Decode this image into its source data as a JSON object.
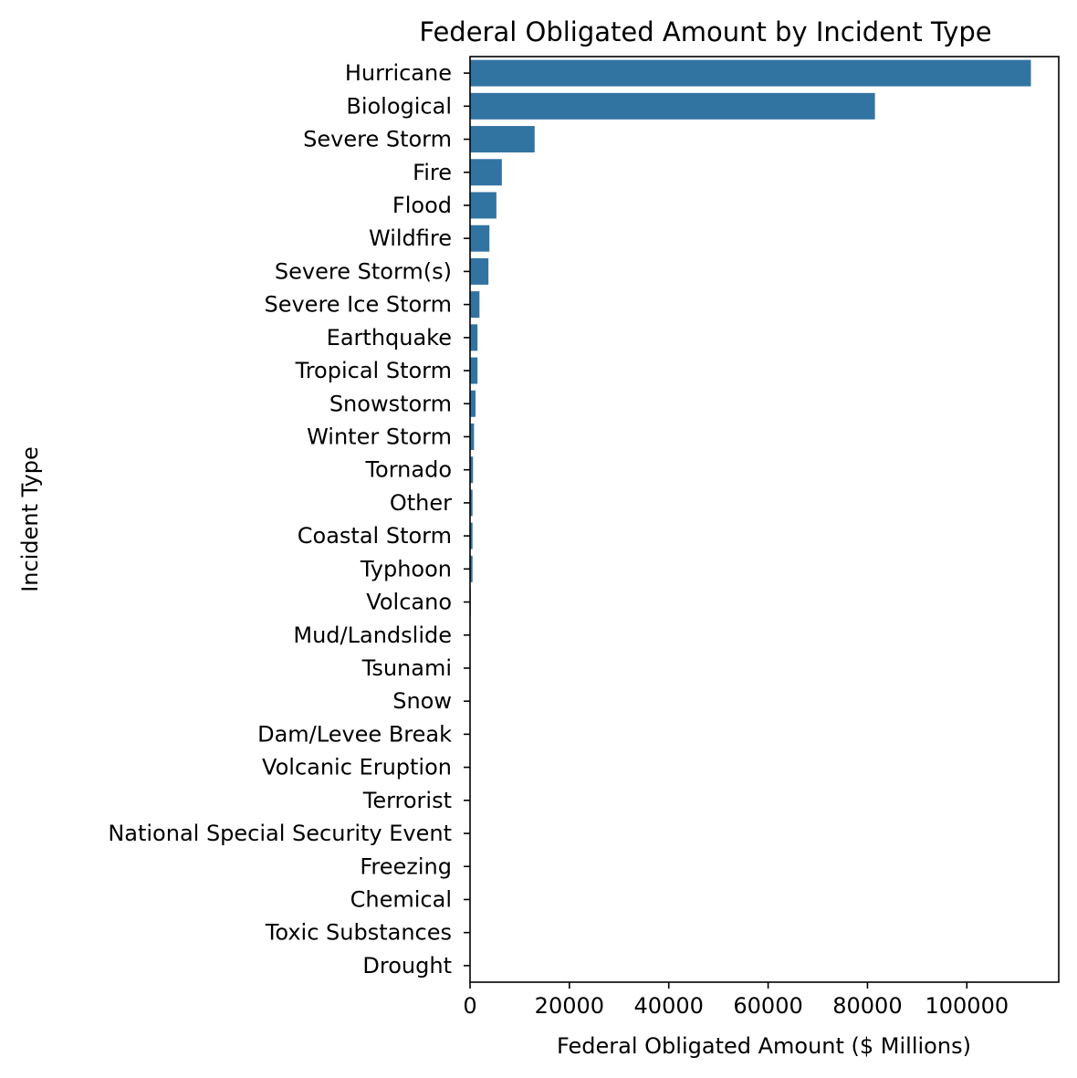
{
  "chart_data": {
    "type": "bar",
    "orientation": "horizontal",
    "title": "Federal Obligated Amount by Incident Type",
    "xlabel": "Federal Obligated Amount ($ Millions)",
    "ylabel": "Incident Type",
    "bar_color": "#3274a1",
    "xlim": [
      0,
      118500
    ],
    "xticks": [
      0,
      20000,
      40000,
      60000,
      80000,
      100000
    ],
    "xtick_labels": [
      "0",
      "20000",
      "40000",
      "60000",
      "80000",
      "100000"
    ],
    "categories": [
      "Hurricane",
      "Biological",
      "Severe Storm",
      "Fire",
      "Flood",
      "Wildfire",
      "Severe Storm(s)",
      "Severe Ice Storm",
      "Earthquake",
      "Tropical Storm",
      "Snowstorm",
      "Winter Storm",
      "Tornado",
      "Other",
      "Coastal Storm",
      "Typhoon",
      "Volcano",
      "Mud/Landslide",
      "Tsunami",
      "Snow",
      "Dam/Levee Break",
      "Volcanic Eruption",
      "Terrorist",
      "National Special Security Event",
      "Freezing",
      "Chemical",
      "Toxic Substances",
      "Drought"
    ],
    "values": [
      112900,
      81500,
      13000,
      6400,
      5300,
      3900,
      3700,
      1900,
      1500,
      1500,
      1100,
      800,
      600,
      500,
      500,
      500,
      150,
      100,
      80,
      60,
      40,
      30,
      20,
      10,
      8,
      5,
      3,
      2
    ],
    "grid": false,
    "legend": "none"
  }
}
